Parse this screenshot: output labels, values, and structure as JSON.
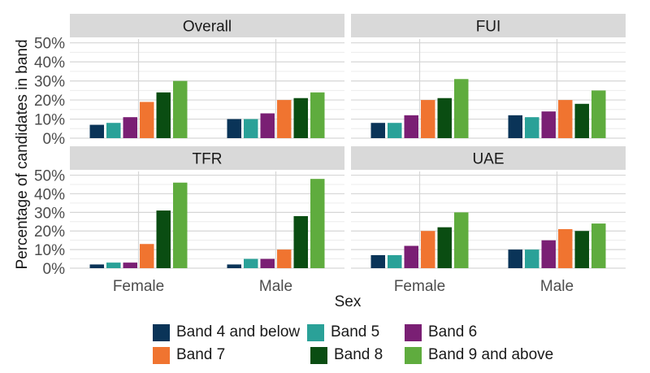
{
  "chart_data": {
    "type": "bar",
    "xlabel": "Sex",
    "ylabel": "Percentage of candidates in band",
    "categories": [
      "Female",
      "Male"
    ],
    "yticks": [
      "0%",
      "10%",
      "20%",
      "30%",
      "40%",
      "50%"
    ],
    "ylim": [
      0,
      52
    ],
    "grid": true,
    "legend_position": "bottom",
    "series": [
      {
        "name": "Band 4 and below",
        "color": "#0a3458"
      },
      {
        "name": "Band 5",
        "color": "#2aa198"
      },
      {
        "name": "Band 6",
        "color": "#7a1f74"
      },
      {
        "name": "Band 7",
        "color": "#f07430"
      },
      {
        "name": "Band 8",
        "color": "#0a4d12"
      },
      {
        "name": "Band 9 and above",
        "color": "#5fac3e"
      }
    ],
    "panels": [
      {
        "title": "Overall",
        "values": {
          "Female": [
            7,
            8,
            11,
            19,
            24,
            30
          ],
          "Male": [
            10,
            10,
            13,
            20,
            21,
            24
          ]
        }
      },
      {
        "title": "FUI",
        "values": {
          "Female": [
            8,
            8,
            12,
            20,
            21,
            31
          ],
          "Male": [
            12,
            11,
            14,
            20,
            18,
            25
          ]
        }
      },
      {
        "title": "TFR",
        "values": {
          "Female": [
            2,
            3,
            3,
            13,
            31,
            46
          ],
          "Male": [
            2,
            5,
            5,
            10,
            28,
            48
          ]
        }
      },
      {
        "title": "UAE",
        "values": {
          "Female": [
            7,
            7,
            12,
            20,
            22,
            30
          ],
          "Male": [
            10,
            10,
            15,
            21,
            20,
            24
          ]
        }
      }
    ]
  },
  "legend": {
    "items": [
      {
        "label": "Band 4 and below",
        "color": "#0a3458"
      },
      {
        "label": "Band 5",
        "color": "#2aa198"
      },
      {
        "label": "Band 6",
        "color": "#7a1f74"
      },
      {
        "label": "Band 7",
        "color": "#f07430"
      },
      {
        "label": "Band 8",
        "color": "#0a4d12"
      },
      {
        "label": "Band 9 and above",
        "color": "#5fac3e"
      }
    ]
  }
}
